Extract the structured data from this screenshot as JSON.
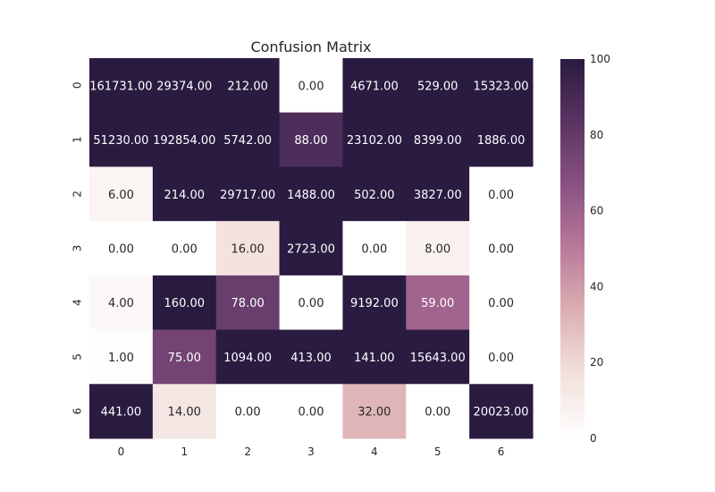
{
  "chart_data": {
    "type": "heatmap",
    "title": "Confusion Matrix",
    "xlabel": "",
    "ylabel": "",
    "x_ticks": [
      "0",
      "1",
      "2",
      "3",
      "4",
      "5",
      "6"
    ],
    "y_ticks": [
      "0",
      "1",
      "2",
      "3",
      "4",
      "5",
      "6"
    ],
    "values": [
      [
        161731.0,
        29374.0,
        212.0,
        0.0,
        4671.0,
        529.0,
        15323.0
      ],
      [
        51230.0,
        192854.0,
        5742.0,
        88.0,
        23102.0,
        8399.0,
        1886.0
      ],
      [
        6.0,
        214.0,
        29717.0,
        1488.0,
        502.0,
        3827.0,
        0.0
      ],
      [
        0.0,
        0.0,
        16.0,
        2723.0,
        0.0,
        8.0,
        0.0
      ],
      [
        4.0,
        160.0,
        78.0,
        0.0,
        9192.0,
        59.0,
        0.0
      ],
      [
        1.0,
        75.0,
        1094.0,
        413.0,
        141.0,
        15643.0,
        0.0
      ],
      [
        441.0,
        14.0,
        0.0,
        0.0,
        32.0,
        0.0,
        20023.0
      ]
    ],
    "labels": [
      [
        "161731.00",
        "29374.00",
        "212.00",
        "0.00",
        "4671.00",
        "529.00",
        "15323.00"
      ],
      [
        "51230.00",
        "192854.00",
        "5742.00",
        "88.00",
        "23102.00",
        "8399.00",
        "1886.00"
      ],
      [
        "6.00",
        "214.00",
        "29717.00",
        "1488.00",
        "502.00",
        "3827.00",
        "0.00"
      ],
      [
        "0.00",
        "0.00",
        "16.00",
        "2723.00",
        "0.00",
        "8.00",
        "0.00"
      ],
      [
        "4.00",
        "160.00",
        "78.00",
        "0.00",
        "9192.00",
        "59.00",
        "0.00"
      ],
      [
        "1.00",
        "75.00",
        "1094.00",
        "413.00",
        "141.00",
        "15643.00",
        "0.00"
      ],
      [
        "441.00",
        "14.00",
        "0.00",
        "0.00",
        "32.00",
        "0.00",
        "20023.00"
      ]
    ],
    "color_range": [
      0,
      100
    ],
    "colorbar_ticks": [
      "0",
      "20",
      "40",
      "60",
      "80",
      "100"
    ],
    "colormap": [
      "#ffffff",
      "#f2e1dc",
      "#ddb1b4",
      "#b97a9a",
      "#8a5283",
      "#5a3462",
      "#2a1b41"
    ],
    "grid": false,
    "legend": "colorbar-right"
  }
}
